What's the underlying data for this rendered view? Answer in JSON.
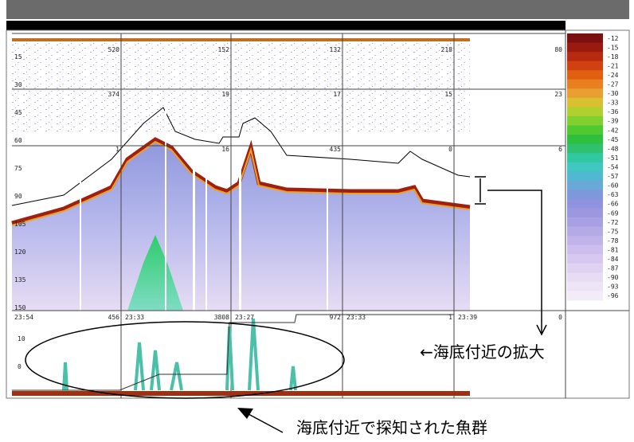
{
  "depth_labels": [
    "15",
    "30",
    "45",
    "60",
    "75",
    "90",
    "105",
    "120",
    "135",
    "150"
  ],
  "cell_values": [
    [
      "520",
      "152",
      "132",
      "218",
      "80"
    ],
    [
      "374",
      "19",
      "17",
      "15",
      "23"
    ],
    [
      "1",
      "16",
      "435",
      "0",
      "6"
    ]
  ],
  "lower_panel": {
    "labels": [
      "23:54",
      "456",
      "23:33",
      "3808",
      "23:27",
      "972",
      "23:33",
      "1",
      "23:39",
      "0"
    ],
    "depth_labels": [
      "10",
      "0"
    ]
  },
  "color_scale": [
    "-12",
    "-15",
    "-18",
    "-21",
    "-24",
    "-27",
    "-30",
    "-33",
    "-36",
    "-39",
    "-42",
    "-45",
    "-48",
    "-51",
    "-54",
    "-57",
    "-60",
    "-63",
    "-66",
    "-69",
    "-72",
    "-75",
    "-78",
    "-81",
    "-84",
    "-87",
    "-90",
    "-93",
    "-96"
  ],
  "annotations": {
    "zoom": "←海底付近の拡大",
    "fish": "海底付近で探知された魚群"
  }
}
